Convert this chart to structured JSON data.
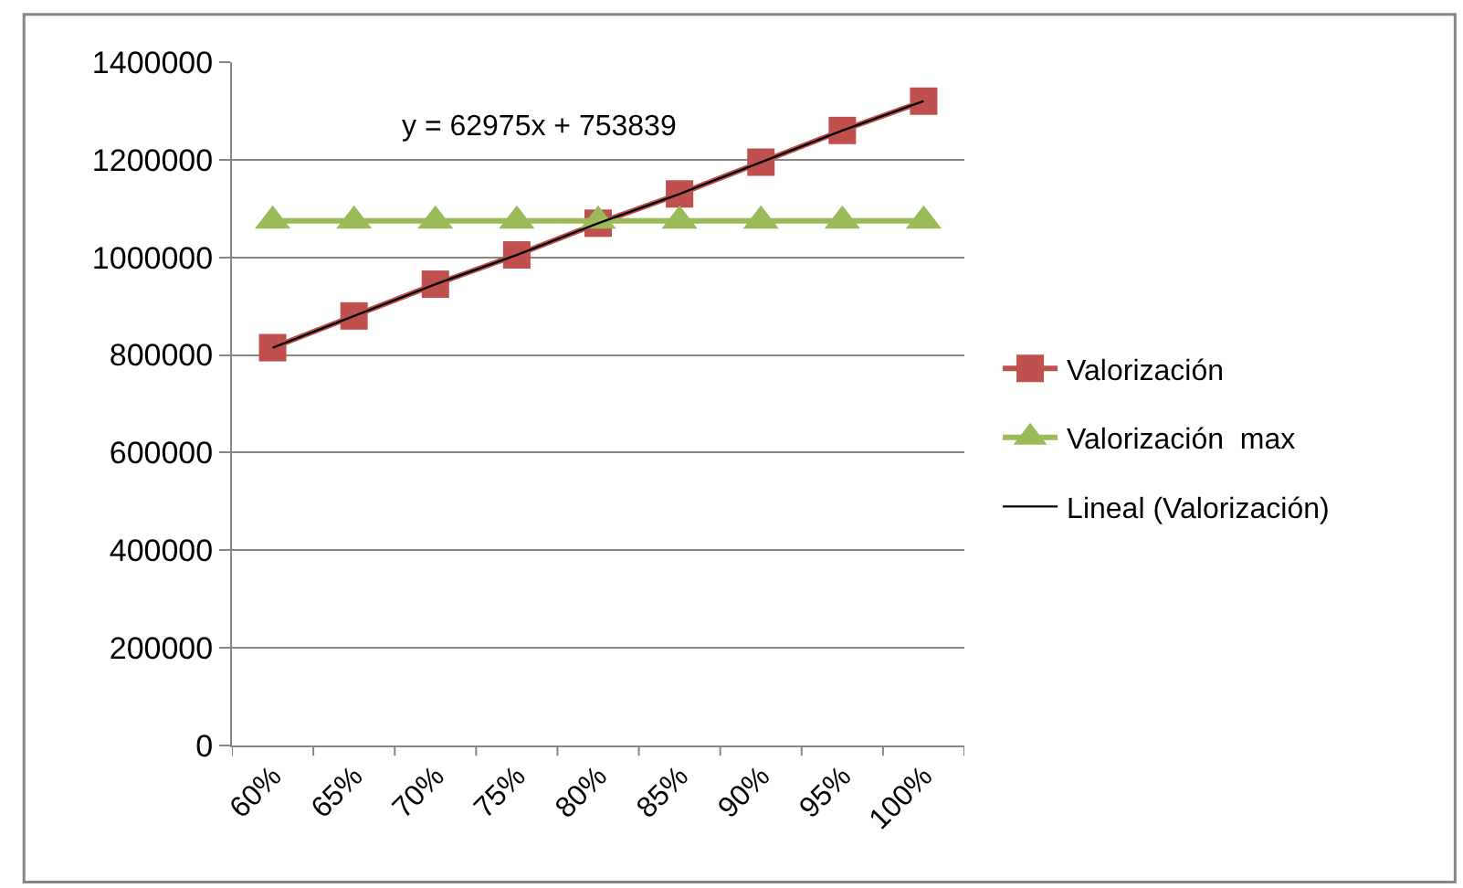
{
  "chart_data": {
    "type": "line",
    "categories": [
      "60%",
      "65%",
      "70%",
      "75%",
      "80%",
      "85%",
      "90%",
      "95%",
      "100%"
    ],
    "series": [
      {
        "name": "Valorización",
        "color": "#c0504d",
        "marker": "square",
        "line_style": "solid",
        "values": [
          815000,
          880000,
          945000,
          1005000,
          1070000,
          1130000,
          1195000,
          1260000,
          1320000
        ]
      },
      {
        "name": "Valorización  max",
        "color": "#9bbb59",
        "marker": "triangle",
        "line_style": "solid",
        "values": [
          1075000,
          1075000,
          1075000,
          1075000,
          1075000,
          1075000,
          1075000,
          1075000,
          1075000
        ]
      },
      {
        "name": "Lineal (Valorización)",
        "color": "#000000",
        "marker": "none",
        "line_style": "solid",
        "values": [
          815000,
          880000,
          945000,
          1005000,
          1070000,
          1130000,
          1195000,
          1260000,
          1320000
        ]
      }
    ],
    "ylim": [
      0,
      1400000
    ],
    "yticks": [
      0,
      200000,
      400000,
      600000,
      800000,
      1000000,
      1200000,
      1400000
    ],
    "annotations": [
      "y = 62975x + 753839"
    ],
    "grid": "y",
    "legend": "right"
  }
}
